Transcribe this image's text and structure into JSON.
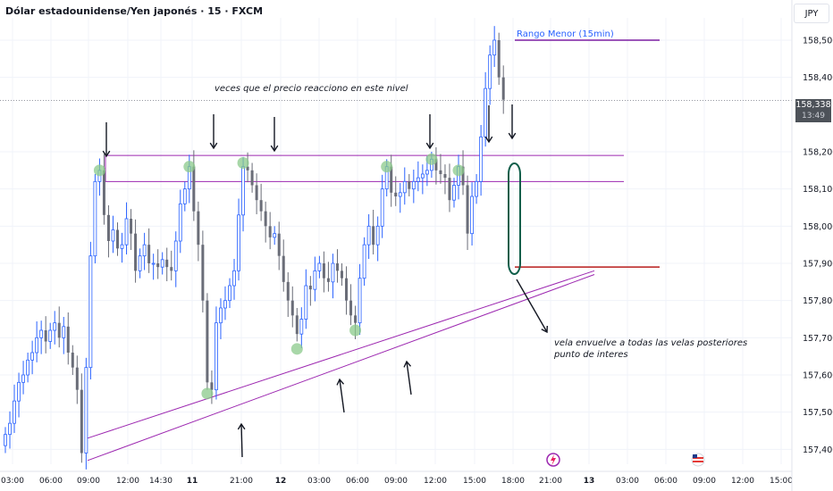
{
  "header": {
    "title": "Dólar estadounidense/Yen japonés · 15 · FXCM",
    "currency": "JPY"
  },
  "price_badge": {
    "price": "158,338",
    "timer": "13:49"
  },
  "annotations": {
    "top_note": "veces que el precio reacciono en este nivel",
    "bottom_note_1": "vela envuelve a todas las velas posteriores",
    "bottom_note_2": "punto de interes",
    "range_label": "Rango Menor (15min)"
  },
  "colors": {
    "up_wick": "#2962ff",
    "down_candle": "#6a6d78",
    "level_lines": "#9c27b0",
    "range_line": "#7b1fa2",
    "poi_line": "#b71c1c",
    "touch_marker": "#8bc98b",
    "engulf_outline": "#0f5e4a",
    "grid": "#f0f3fa"
  },
  "chart_data": {
    "type": "candlestick",
    "symbol": "USDJPY",
    "timeframe": "15",
    "ylim": [
      157.36,
      158.56
    ],
    "y_ticks": [
      "158,500",
      "158,400",
      "158,200",
      "158,100",
      "158,000",
      "157,900",
      "157,800",
      "157,700",
      "157,600",
      "157,500",
      "157,400"
    ],
    "x_ticks": [
      "03:00",
      "06:00",
      "09:00",
      "12:00",
      "14:30",
      "11",
      "21:00",
      "12",
      "03:00",
      "06:00",
      "09:00",
      "12:00",
      "15:00",
      "18:00",
      "21:00",
      "13",
      "03:00",
      "06:00",
      "09:00",
      "12:00",
      "15:00"
    ],
    "current_price": 158.338,
    "resistance_levels": [
      158.19,
      158.12
    ],
    "range_high": 158.5,
    "point_of_interest": 157.89,
    "ascending_channel": {
      "upper": [
        [
          0,
          157.43
        ],
        [
          114,
          157.88
        ]
      ],
      "lower": [
        [
          0,
          157.37
        ],
        [
          114,
          157.87
        ]
      ]
    },
    "touch_points": [
      {
        "i": 21,
        "price": 158.15
      },
      {
        "i": 41,
        "price": 158.16
      },
      {
        "i": 53,
        "price": 158.17
      },
      {
        "i": 45,
        "price": 157.55
      },
      {
        "i": 65,
        "price": 157.67
      },
      {
        "i": 78,
        "price": 157.72
      },
      {
        "i": 85,
        "price": 158.16
      },
      {
        "i": 95,
        "price": 158.18
      },
      {
        "i": 101,
        "price": 158.15
      }
    ],
    "close": [
      157.44,
      157.47,
      157.53,
      157.58,
      157.6,
      157.64,
      157.66,
      157.7,
      157.72,
      157.69,
      157.72,
      157.74,
      157.7,
      157.73,
      157.66,
      157.62,
      157.56,
      157.39,
      157.62,
      157.92,
      158.12,
      158.15,
      158.03,
      157.96,
      157.99,
      157.94,
      157.95,
      158.02,
      157.98,
      157.88,
      157.92,
      157.95,
      157.9,
      157.9,
      157.89,
      157.91,
      157.89,
      157.88,
      157.96,
      158.06,
      158.1,
      158.16,
      158.04,
      157.95,
      157.8,
      157.58,
      157.56,
      157.74,
      157.78,
      157.8,
      157.84,
      157.88,
      158.03,
      158.16,
      158.15,
      158.11,
      158.07,
      158.04,
      158.0,
      157.97,
      157.98,
      157.92,
      157.85,
      157.8,
      157.76,
      157.71,
      157.75,
      157.84,
      157.83,
      157.88,
      157.9,
      157.86,
      157.85,
      157.9,
      157.88,
      157.86,
      157.8,
      157.76,
      157.74,
      157.86,
      157.95,
      158.0,
      157.95,
      158.0,
      158.1,
      158.16,
      158.09,
      158.08,
      158.09,
      158.12,
      158.1,
      158.12,
      158.13,
      158.14,
      158.15,
      158.18,
      158.15,
      158.14,
      158.13,
      158.07,
      158.11,
      158.16,
      158.11,
      157.98,
      158.08,
      158.12,
      158.24,
      158.37,
      158.46,
      158.5,
      158.4,
      158.34
    ],
    "open": [
      157.41,
      157.44,
      157.47,
      157.53,
      157.58,
      157.6,
      157.64,
      157.66,
      157.7,
      157.72,
      157.69,
      157.72,
      157.74,
      157.7,
      157.73,
      157.66,
      157.62,
      157.56,
      157.39,
      157.62,
      157.92,
      158.12,
      158.15,
      158.03,
      157.96,
      157.99,
      157.94,
      157.95,
      158.02,
      157.98,
      157.88,
      157.92,
      157.95,
      157.9,
      157.9,
      157.89,
      157.91,
      157.89,
      157.88,
      157.96,
      158.06,
      158.1,
      158.16,
      158.04,
      157.95,
      157.8,
      157.58,
      157.56,
      157.74,
      157.78,
      157.8,
      157.84,
      157.88,
      158.03,
      158.16,
      158.15,
      158.11,
      158.07,
      158.04,
      158.0,
      157.97,
      157.98,
      157.92,
      157.85,
      157.8,
      157.76,
      157.71,
      157.75,
      157.84,
      157.83,
      157.88,
      157.9,
      157.86,
      157.85,
      157.9,
      157.88,
      157.86,
      157.8,
      157.76,
      157.74,
      157.86,
      157.95,
      158.0,
      157.95,
      158.0,
      158.1,
      158.16,
      158.09,
      158.08,
      158.09,
      158.12,
      158.1,
      158.12,
      158.13,
      158.14,
      158.15,
      158.18,
      158.15,
      158.14,
      158.13,
      158.07,
      158.11,
      158.16,
      158.11,
      157.98,
      158.08,
      158.12,
      158.24,
      158.37,
      158.46,
      158.5,
      158.4
    ]
  }
}
